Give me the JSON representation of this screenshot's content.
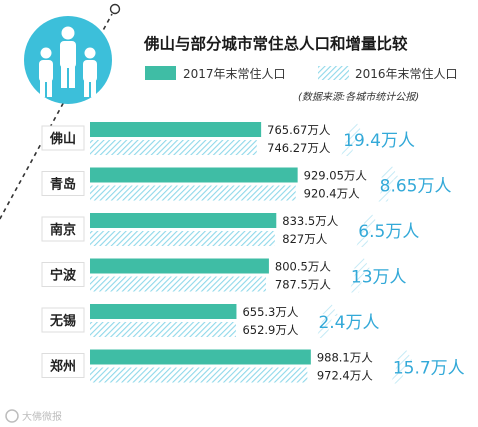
{
  "chart_data": {
    "type": "bar",
    "orientation": "horizontal",
    "title": "佛山与部分城市常住总人口和增量比较",
    "source_note": "(数据来源:各城市统计公报)",
    "unit": "万人",
    "categories": [
      "佛山",
      "青岛",
      "南京",
      "宁波",
      "无锡",
      "郑州"
    ],
    "series": [
      {
        "name": "2017年末常住人口",
        "values": [
          765.67,
          929.05,
          833.5,
          800.5,
          655.3,
          988.1
        ],
        "style": "solid"
      },
      {
        "name": "2016年末常住人口",
        "values": [
          746.27,
          920.4,
          827,
          787.5,
          652.9,
          972.4
        ],
        "style": "hatched"
      }
    ],
    "labels_2017": [
      "765.67万人",
      "929.05万人",
      "833.5万人",
      "800.5万人",
      "655.3万人",
      "988.1万人"
    ],
    "labels_2016": [
      "746.27万人",
      "920.4万人",
      "827万人",
      "787.5万人",
      "652.9万人",
      "972.4万人"
    ],
    "increments": [
      19.4,
      8.65,
      6.5,
      13,
      2.4,
      15.7
    ],
    "increment_labels": [
      "19.4万人",
      "8.65万人",
      "6.5万人",
      "13万人",
      "2.4万人",
      "15.7万人"
    ],
    "legend_position": "top",
    "grid": false,
    "xlim": [
      0,
      1000
    ]
  },
  "colors": {
    "bar": "#3fbda5",
    "hatch": "#8fd8ea",
    "increment": "#33a9d8",
    "category_bg": "#ffffff",
    "circle": "#3cbfda",
    "text": "#222222"
  },
  "watermark": "大佛微报"
}
